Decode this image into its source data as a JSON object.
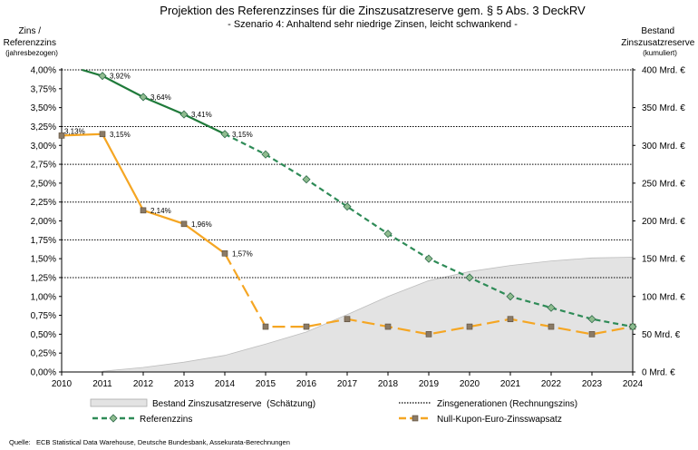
{
  "chart_data": {
    "type": "line",
    "title": "Projektion des Referenzzinses für die Zinszusatzreserve gem. § 5 Abs. 3 DeckRV",
    "subtitle": "- Szenario 4: Anhaltend sehr niedrige Zinsen, leicht schwankend -",
    "ylabel_left": [
      "Zins /",
      "Referenzzins",
      "(jahresbezogen)"
    ],
    "ylabel_right": [
      "Bestand",
      "Zinszusatzreserve",
      "(kumuliert)"
    ],
    "x": [
      2010,
      2011,
      2012,
      2013,
      2014,
      2015,
      2016,
      2017,
      2018,
      2019,
      2020,
      2021,
      2022,
      2023,
      2024
    ],
    "x_ticks": [
      "2010",
      "2011",
      "2012",
      "2013",
      "2014",
      "2015",
      "2016",
      "2017",
      "2018",
      "2019",
      "2020",
      "2021",
      "2022",
      "2023",
      "2024"
    ],
    "ylim_left": [
      0,
      4
    ],
    "y_ticks_left": [
      "0,00%",
      "0,25%",
      "0,50%",
      "0,75%",
      "1,00%",
      "1,25%",
      "1,50%",
      "1,75%",
      "2,00%",
      "2,25%",
      "2,50%",
      "2,75%",
      "3,00%",
      "3,25%",
      "3,50%",
      "3,75%",
      "4,00%"
    ],
    "ylim_right": [
      0,
      400
    ],
    "y_ticks_right": [
      "0 Mrd. €",
      "50 Mrd. €",
      "100 Mrd. €",
      "150 Mrd. €",
      "200 Mrd. €",
      "250 Mrd. €",
      "300 Mrd. €",
      "350 Mrd. €",
      "400 Mrd. €"
    ],
    "rechnungszins_levels": [
      4.0,
      3.25,
      2.75,
      2.25,
      1.75,
      1.25
    ],
    "series": [
      {
        "name": "Bestand Zinszusatzreserve  (Schätzung)",
        "kind": "area",
        "axis": "right",
        "color": "#e3e3e3",
        "x": [
          2011,
          2012,
          2013,
          2014,
          2015,
          2016,
          2017,
          2018,
          2019,
          2020,
          2021,
          2022,
          2023,
          2024
        ],
        "values": [
          1,
          6,
          13,
          22,
          37,
          53,
          76,
          100,
          121,
          133,
          141,
          147,
          151,
          152
        ]
      },
      {
        "name": "Referenzzins",
        "kind": "line",
        "axis": "left",
        "color": "#2e8b57",
        "solid_color": "#1f7a3a",
        "x": [
          2010.5,
          2011,
          2012,
          2013,
          2014,
          2015,
          2016,
          2017,
          2018,
          2019,
          2020,
          2021,
          2022,
          2023,
          2024
        ],
        "values": [
          4.0,
          3.92,
          3.64,
          3.41,
          3.15,
          2.88,
          2.55,
          2.19,
          1.83,
          1.5,
          1.25,
          1.0,
          0.85,
          0.7,
          0.6
        ],
        "solid_until": 2014,
        "labels": [
          null,
          "3,92%",
          "3,64%",
          "3,41%",
          "3,15%",
          null,
          null,
          null,
          null,
          null,
          null,
          null,
          null,
          null,
          null
        ]
      },
      {
        "name": "Null-Kupon-Euro-Zinsswapsatz",
        "kind": "line",
        "axis": "left",
        "color": "#f5a623",
        "x": [
          2010,
          2011,
          2012,
          2013,
          2014,
          2015,
          2016,
          2017,
          2018,
          2019,
          2020,
          2021,
          2022,
          2023,
          2024
        ],
        "values": [
          3.13,
          3.15,
          2.14,
          1.96,
          1.57,
          0.6,
          0.6,
          0.7,
          0.6,
          0.5,
          0.6,
          0.7,
          0.6,
          0.5,
          0.6
        ],
        "solid_until": 2014,
        "labels": [
          "3,13%",
          "3,15%",
          "2,14%",
          "1,96%",
          "1,57%",
          null,
          null,
          null,
          null,
          null,
          null,
          null,
          null,
          null,
          null
        ]
      }
    ],
    "legend": [
      {
        "label": "Bestand Zinszusatzreserve  (Schätzung)",
        "kind": "area"
      },
      {
        "label": "Zinsgenerationen (Rechnungszins)",
        "kind": "dotted"
      },
      {
        "label": "Referenzzins",
        "kind": "green"
      },
      {
        "label": "Null-Kupon-Euro-Zinsswapsatz",
        "kind": "orange"
      }
    ],
    "source": "Quelle:   ECB Statistical Data Warehouse, Deutsche Bundesbank, Assekurata-Berechnungen"
  }
}
